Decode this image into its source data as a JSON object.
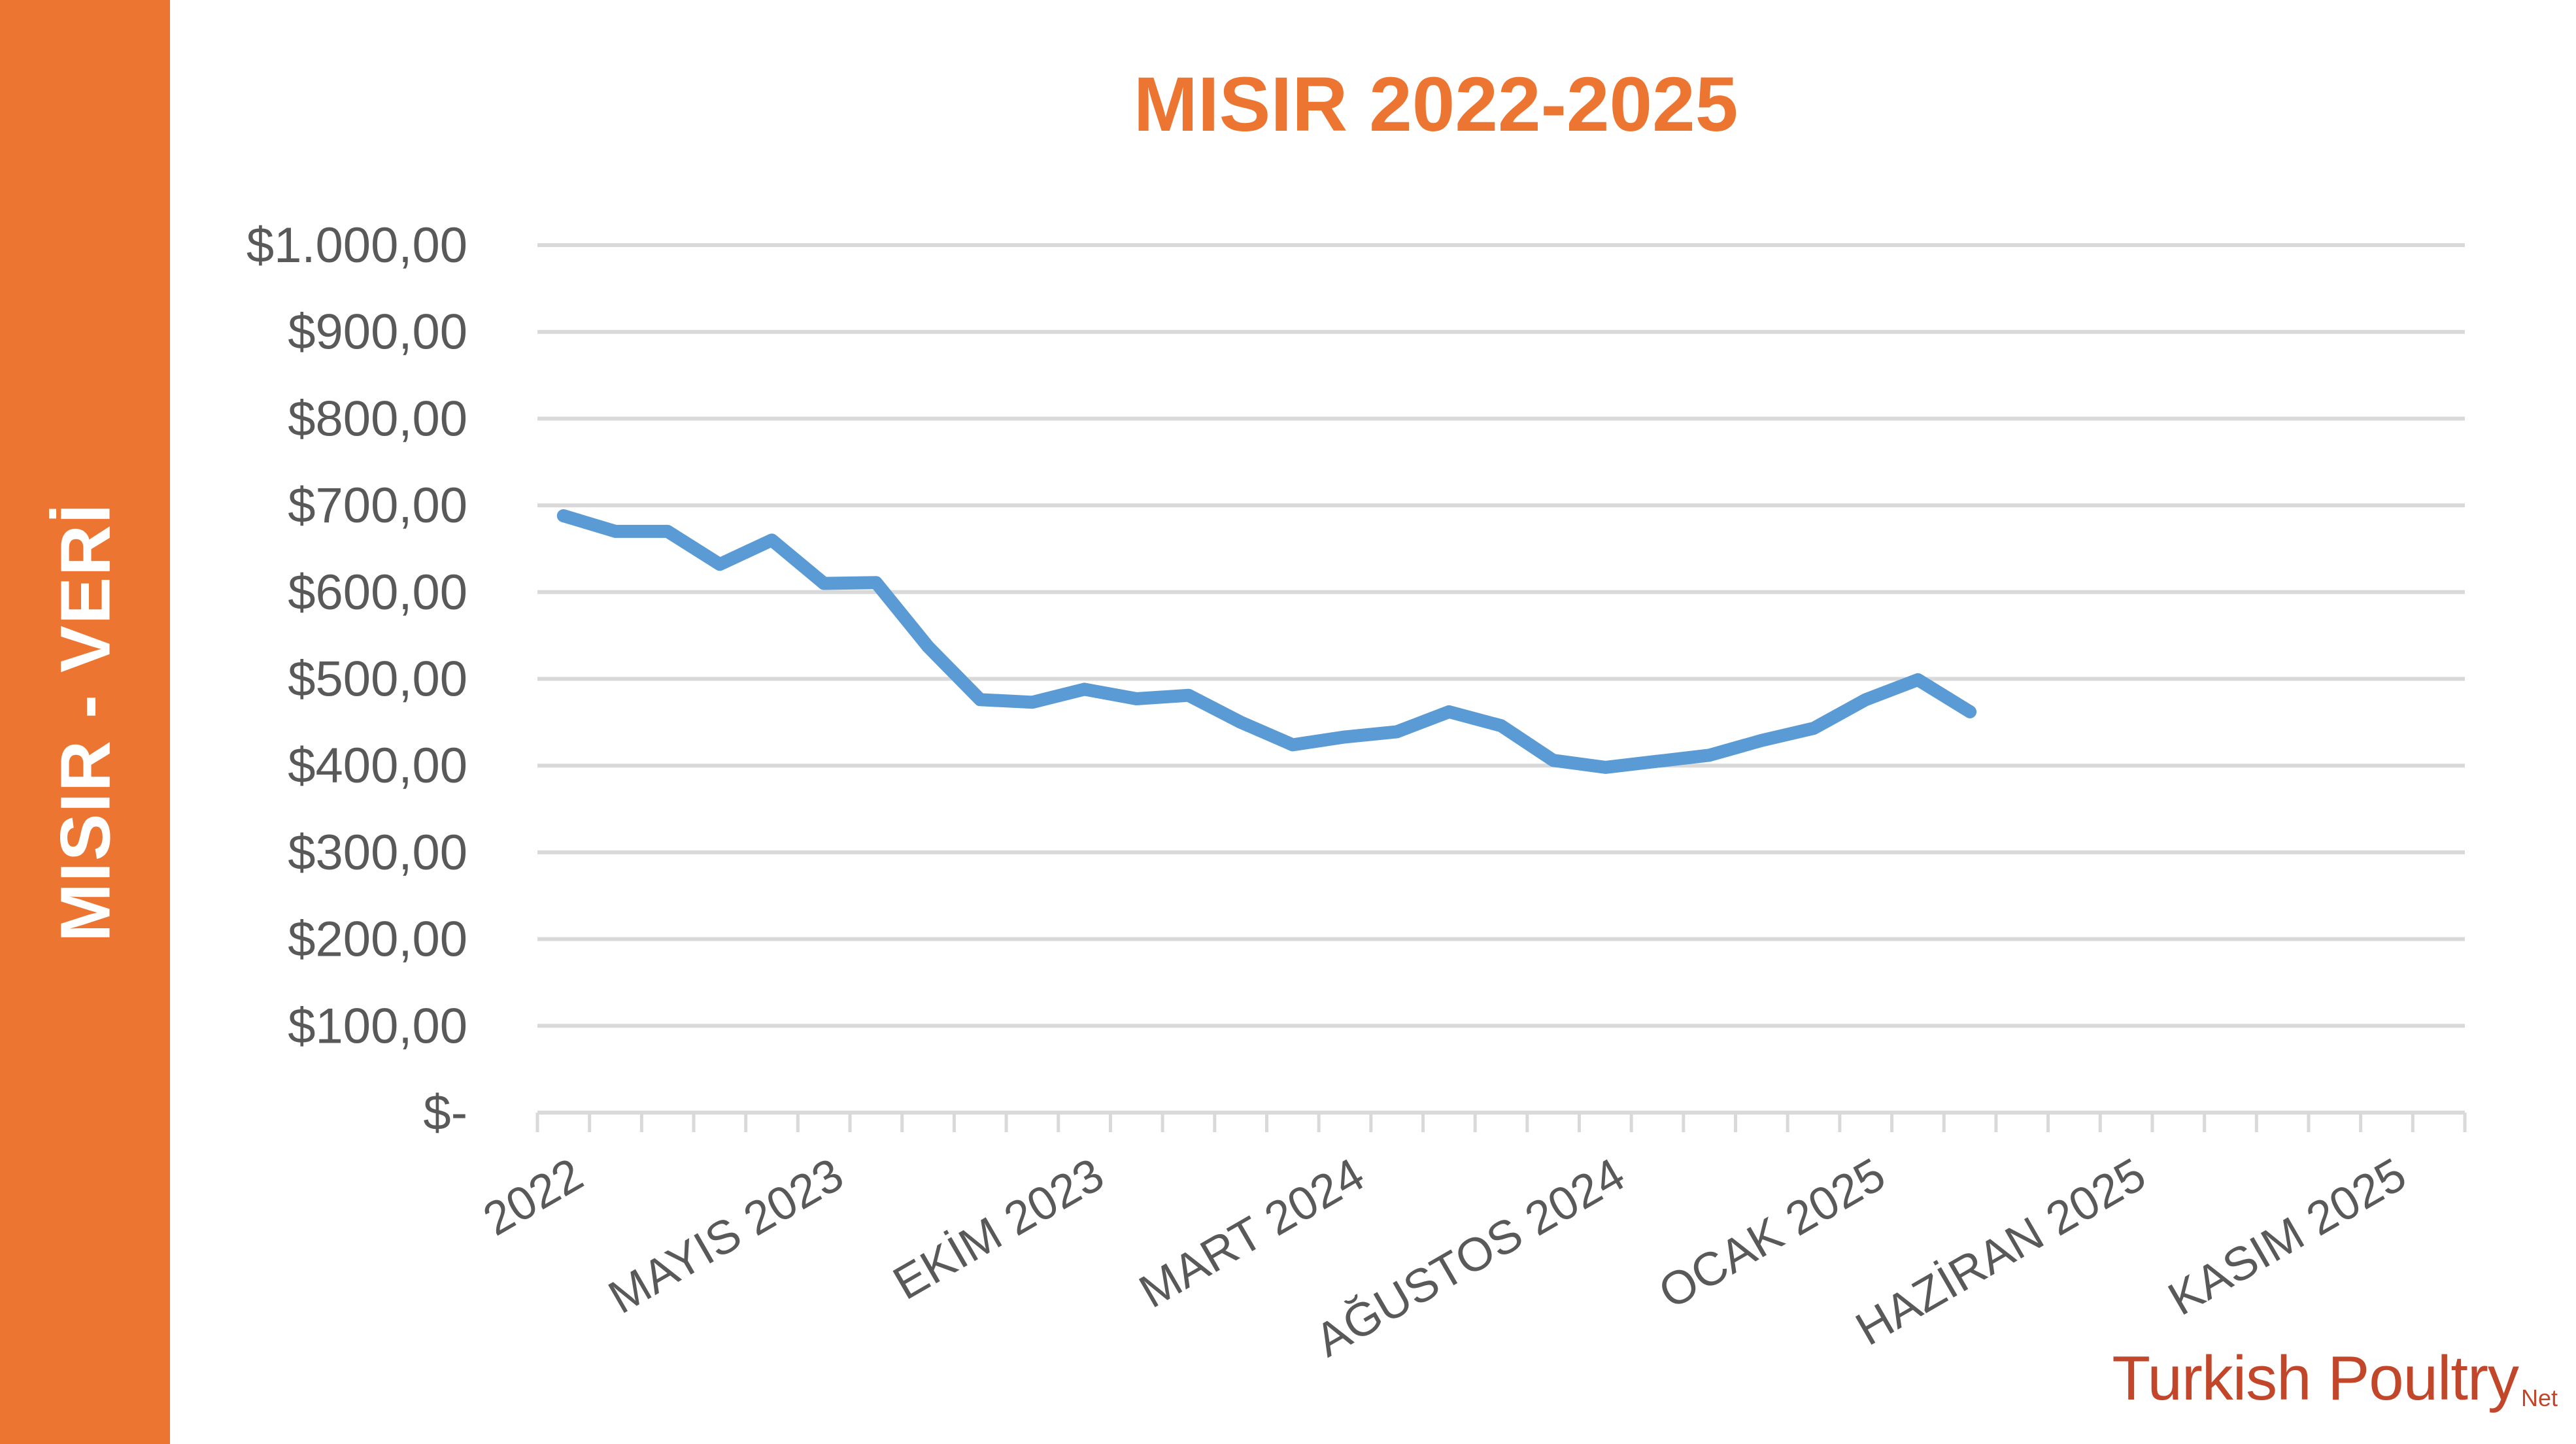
{
  "sidebar": {
    "label": "MISIR - VERİ"
  },
  "colors": {
    "accent": "#ED7532",
    "line": "#5B9BD5",
    "grid": "#D9D9D9",
    "text": "#595959",
    "logo": "#C2462A"
  },
  "logo": {
    "text": "Turkish Poultry",
    "suffix": "Net"
  },
  "chart_data": {
    "type": "line",
    "title": "MISIR  2022-2025",
    "xlabel": "",
    "ylabel": "",
    "ylim": [
      0,
      1000
    ],
    "yticks": [
      {
        "value": 0,
        "label": "$-"
      },
      {
        "value": 100,
        "label": "$100,00"
      },
      {
        "value": 200,
        "label": "$200,00"
      },
      {
        "value": 300,
        "label": "$300,00"
      },
      {
        "value": 400,
        "label": "$400,00"
      },
      {
        "value": 500,
        "label": "$500,00"
      },
      {
        "value": 600,
        "label": "$600,00"
      },
      {
        "value": 700,
        "label": "$700,00"
      },
      {
        "value": 800,
        "label": "$800,00"
      },
      {
        "value": 900,
        "label": "$900,00"
      },
      {
        "value": 1000,
        "label": "$1.000,00"
      }
    ],
    "category_count": 37,
    "xticks": [
      {
        "index": 0,
        "label": "2022"
      },
      {
        "index": 5,
        "label": "MAYIS 2023"
      },
      {
        "index": 10,
        "label": "EKİM 2023"
      },
      {
        "index": 15,
        "label": "MART 2024"
      },
      {
        "index": 20,
        "label": "AĞUSTOS 2024"
      },
      {
        "index": 25,
        "label": "OCAK 2025"
      },
      {
        "index": 30,
        "label": "HAZİRAN 2025"
      },
      {
        "index": 35,
        "label": "KASIM 2025"
      }
    ],
    "grid": true,
    "legend": "none",
    "series": [
      {
        "values": [
          688,
          670,
          670,
          632,
          660,
          610,
          611,
          537,
          476,
          473,
          488,
          477,
          481,
          450,
          424,
          433,
          439,
          462,
          446,
          406,
          398,
          405,
          412,
          429,
          443,
          476,
          499,
          462
        ]
      }
    ]
  }
}
